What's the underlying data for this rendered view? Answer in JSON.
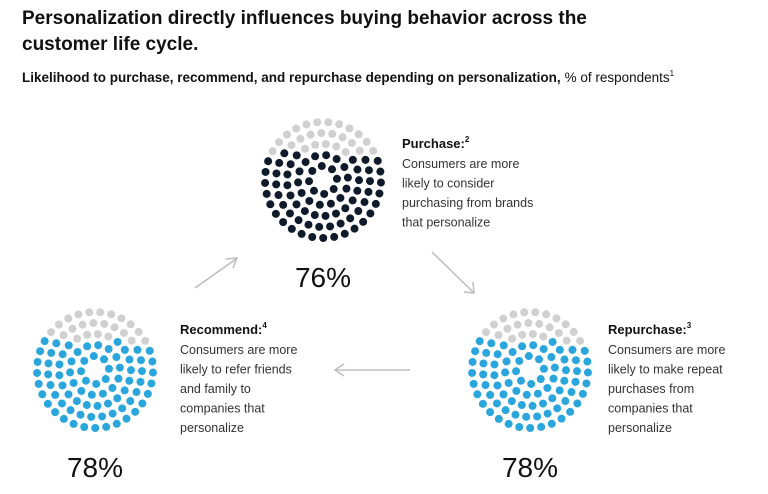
{
  "title": "Personalization directly influences buying behavior across the customer life cycle.",
  "subtitle": "Likelihood to purchase, recommend, and repurchase depending on personalization,",
  "subtitle_unit": "% of respondents",
  "subtitle_note": "1",
  "chart_data": [
    {
      "type": "dot",
      "title": "Purchase:",
      "note": "2",
      "description": [
        "Consumers are more",
        "likely to consider",
        "purchasing from brands",
        "that personalize"
      ],
      "value": 76,
      "value_label": "76%",
      "color": "#0f1a2a",
      "rest_color": "#d0d0d0"
    },
    {
      "type": "dot",
      "title": "Recommend:",
      "note": "4",
      "description": [
        "Consumers are more",
        "likely to refer friends",
        "and family to",
        "companies that",
        "personalize"
      ],
      "value": 78,
      "value_label": "78%",
      "color": "#2aa6dd",
      "rest_color": "#d0d0d0"
    },
    {
      "type": "dot",
      "title": "Repurchase:",
      "note": "3",
      "description": [
        "Consumers are more",
        "likely to make repeat",
        "purchases from",
        "companies that",
        "personalize"
      ],
      "value": 78,
      "value_label": "78%",
      "color": "#2aa6dd",
      "rest_color": "#d0d0d0"
    }
  ]
}
